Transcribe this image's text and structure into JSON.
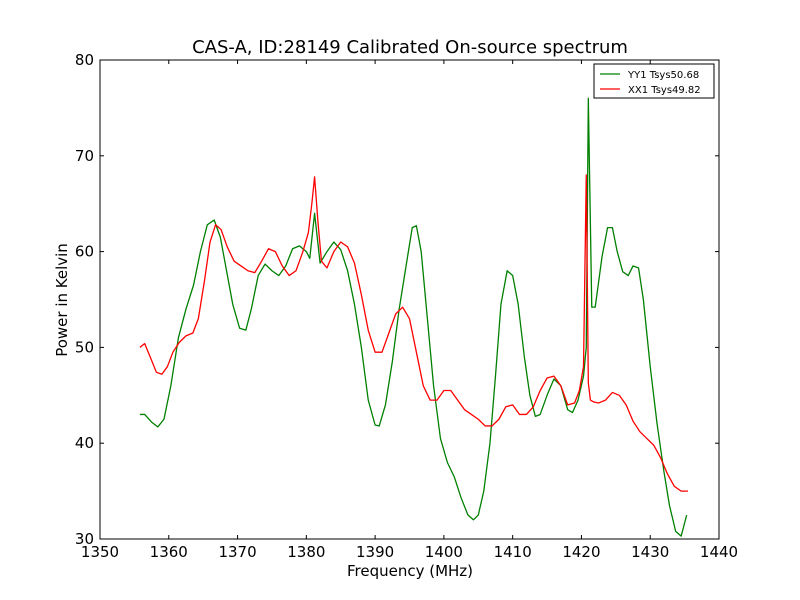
{
  "chart_data": {
    "type": "line",
    "title": "CAS-A, ID:28149 Calibrated On-source spectrum",
    "xlabel": "Frequency (MHz)",
    "ylabel": "Power in Kelvin",
    "xlim": [
      1350,
      1440
    ],
    "ylim": [
      30,
      80
    ],
    "xticks": [
      1350,
      1360,
      1370,
      1380,
      1390,
      1400,
      1410,
      1420,
      1430,
      1440
    ],
    "yticks": [
      30,
      40,
      50,
      60,
      70,
      80
    ],
    "grid": false,
    "legend_position": "top-right",
    "series": [
      {
        "name": "YY1 Tsys50.68",
        "color": "#008000",
        "x": [
          1355.8,
          1356.5,
          1357.5,
          1358.4,
          1359.3,
          1360.3,
          1361.4,
          1362.5,
          1363.6,
          1364.6,
          1365.6,
          1366.6,
          1367.5,
          1368.4,
          1369.3,
          1370.3,
          1371.2,
          1372.0,
          1373.0,
          1374.0,
          1375.0,
          1376.0,
          1377.0,
          1378.0,
          1379.0,
          1380.0,
          1380.5,
          1381.2,
          1382.0,
          1383.0,
          1384.0,
          1385.0,
          1386.0,
          1387.0,
          1388.0,
          1389.0,
          1390.0,
          1390.6,
          1391.5,
          1392.5,
          1393.5,
          1394.5,
          1395.4,
          1396.0,
          1396.7,
          1397.6,
          1398.5,
          1399.5,
          1400.5,
          1401.5,
          1402.5,
          1403.5,
          1404.3,
          1405.0,
          1405.8,
          1406.7,
          1407.5,
          1408.3,
          1409.2,
          1410.0,
          1410.8,
          1411.7,
          1412.5,
          1413.3,
          1414.0,
          1415.0,
          1416.0,
          1417.0,
          1418.0,
          1418.7,
          1419.5,
          1420.3,
          1420.7,
          1421.0,
          1421.5,
          1422.0,
          1423.0,
          1423.8,
          1424.5,
          1425.2,
          1426.0,
          1426.8,
          1427.5,
          1428.3,
          1429.0,
          1430.0,
          1431.0,
          1432.0,
          1432.8,
          1433.7,
          1434.5,
          1435.3
        ],
        "y": [
          43.0,
          43.0,
          42.2,
          41.7,
          42.5,
          46.0,
          51.0,
          54.0,
          56.5,
          60.0,
          62.8,
          63.3,
          61.5,
          58.0,
          54.5,
          52.0,
          51.8,
          54.0,
          57.5,
          58.7,
          58.0,
          57.5,
          58.5,
          60.3,
          60.6,
          60.0,
          59.3,
          64.0,
          58.8,
          60.0,
          61.0,
          60.2,
          58.0,
          54.5,
          50.0,
          44.5,
          41.9,
          41.8,
          44.0,
          48.5,
          54.0,
          58.5,
          62.5,
          62.7,
          60.0,
          53.0,
          46.0,
          40.5,
          38.0,
          36.5,
          34.3,
          32.5,
          32.0,
          32.5,
          35.0,
          40.0,
          47.0,
          54.5,
          58.0,
          57.5,
          54.5,
          49.0,
          45.0,
          42.8,
          43.0,
          45.0,
          46.7,
          46.0,
          43.5,
          43.2,
          44.5,
          47.0,
          50.0,
          76.0,
          54.2,
          54.2,
          59.5,
          62.5,
          62.5,
          60.0,
          57.9,
          57.5,
          58.5,
          58.3,
          55.0,
          48.0,
          42.0,
          37.0,
          33.5,
          30.8,
          30.3,
          32.5
        ]
      },
      {
        "name": "XX1 Tsys49.82",
        "color": "#ff0000",
        "x": [
          1355.8,
          1356.5,
          1357.3,
          1358.2,
          1359.0,
          1359.8,
          1360.6,
          1361.5,
          1362.5,
          1363.5,
          1364.3,
          1365.2,
          1366.0,
          1366.8,
          1367.6,
          1368.5,
          1369.5,
          1370.5,
          1371.5,
          1372.5,
          1373.5,
          1374.5,
          1375.5,
          1376.5,
          1377.5,
          1378.5,
          1379.5,
          1380.3,
          1380.8,
          1381.2,
          1381.7,
          1382.2,
          1383.0,
          1384.0,
          1385.0,
          1386.0,
          1387.0,
          1388.0,
          1389.0,
          1390.0,
          1391.0,
          1392.0,
          1393.0,
          1394.0,
          1395.0,
          1396.0,
          1397.0,
          1398.0,
          1399.0,
          1400.0,
          1401.0,
          1402.0,
          1403.0,
          1404.0,
          1405.0,
          1406.0,
          1407.0,
          1408.0,
          1409.0,
          1410.0,
          1411.0,
          1412.0,
          1413.0,
          1414.0,
          1415.0,
          1416.0,
          1417.0,
          1418.0,
          1419.0,
          1419.7,
          1420.3,
          1420.7,
          1421.0,
          1421.3,
          1421.8,
          1422.5,
          1423.5,
          1424.5,
          1425.5,
          1426.5,
          1427.5,
          1428.5,
          1429.5,
          1430.5,
          1431.5,
          1432.5,
          1433.5,
          1434.5,
          1435.5
        ],
        "y": [
          50.0,
          50.4,
          49.0,
          47.4,
          47.2,
          48.0,
          49.5,
          50.5,
          51.2,
          51.5,
          53.0,
          57.0,
          61.0,
          62.8,
          62.3,
          60.5,
          59.0,
          58.5,
          58.0,
          57.8,
          59.0,
          60.3,
          60.0,
          58.5,
          57.5,
          58.0,
          60.0,
          62.0,
          65.0,
          67.8,
          63.0,
          59.0,
          58.3,
          60.0,
          61.0,
          60.5,
          58.8,
          55.5,
          51.8,
          49.5,
          49.5,
          51.5,
          53.5,
          54.2,
          53.0,
          49.5,
          46.0,
          44.5,
          44.5,
          45.5,
          45.5,
          44.5,
          43.5,
          43.0,
          42.5,
          41.8,
          41.8,
          42.5,
          43.8,
          44.0,
          43.0,
          43.0,
          43.8,
          45.5,
          46.8,
          47.0,
          46.0,
          44.0,
          44.2,
          45.5,
          48.0,
          68.0,
          46.3,
          44.5,
          44.3,
          44.2,
          44.5,
          45.3,
          45.0,
          44.0,
          42.3,
          41.2,
          40.5,
          39.8,
          38.5,
          36.8,
          35.5,
          35.0,
          35.0
        ]
      }
    ]
  }
}
